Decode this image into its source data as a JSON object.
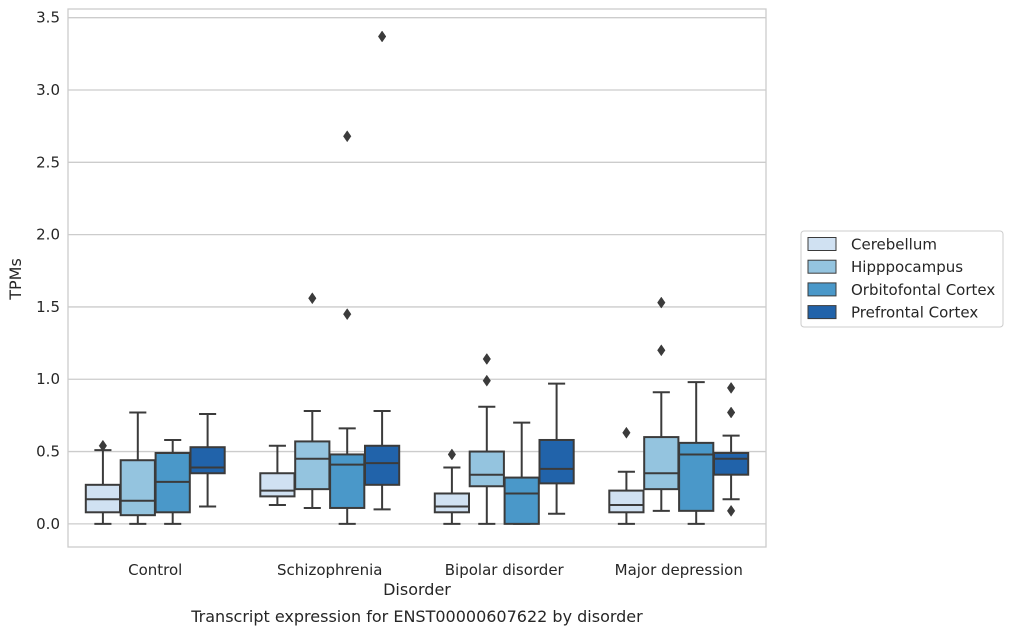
{
  "chart_data": {
    "type": "box",
    "title": "",
    "caption": "Transcript expression for ENST00000607622 by disorder",
    "xlabel": "Disorder",
    "ylabel": "TPMs",
    "ylim": [
      -0.16,
      3.56
    ],
    "yticks": [
      0.0,
      0.5,
      1.0,
      1.5,
      2.0,
      2.5,
      3.0,
      3.5
    ],
    "ytick_labels": [
      "0.0",
      "0.5",
      "1.0",
      "1.5",
      "2.0",
      "2.5",
      "3.0",
      "3.5"
    ],
    "categories": [
      "Control",
      "Schizophrenia",
      "Bipolar disorder",
      "Major depression"
    ],
    "grid": true,
    "legend_position": "right",
    "series": [
      {
        "name": "Cerebellum",
        "color": "#d0e1f2",
        "boxes": [
          {
            "whislo": 0.0,
            "q1": 0.08,
            "med": 0.17,
            "q3": 0.27,
            "whishi": 0.51,
            "fliers": [
              0.54
            ]
          },
          {
            "whislo": 0.13,
            "q1": 0.19,
            "med": 0.23,
            "q3": 0.35,
            "whishi": 0.54,
            "fliers": []
          },
          {
            "whislo": 0.0,
            "q1": 0.08,
            "med": 0.12,
            "q3": 0.21,
            "whishi": 0.39,
            "fliers": [
              0.48
            ]
          },
          {
            "whislo": 0.0,
            "q1": 0.08,
            "med": 0.13,
            "q3": 0.23,
            "whishi": 0.36,
            "fliers": [
              0.63
            ]
          }
        ]
      },
      {
        "name": "Hipppocampus",
        "color": "#94c4df",
        "boxes": [
          {
            "whislo": 0.0,
            "q1": 0.06,
            "med": 0.16,
            "q3": 0.44,
            "whishi": 0.77,
            "fliers": []
          },
          {
            "whislo": 0.11,
            "q1": 0.24,
            "med": 0.45,
            "q3": 0.57,
            "whishi": 0.78,
            "fliers": [
              1.56
            ]
          },
          {
            "whislo": 0.0,
            "q1": 0.26,
            "med": 0.34,
            "q3": 0.5,
            "whishi": 0.81,
            "fliers": [
              0.99,
              1.14
            ]
          },
          {
            "whislo": 0.09,
            "q1": 0.24,
            "med": 0.35,
            "q3": 0.6,
            "whishi": 0.91,
            "fliers": [
              1.2,
              1.53
            ]
          }
        ]
      },
      {
        "name": "Orbitofontal Cortex",
        "color": "#4a98c9",
        "boxes": [
          {
            "whislo": 0.0,
            "q1": 0.08,
            "med": 0.29,
            "q3": 0.49,
            "whishi": 0.58,
            "fliers": []
          },
          {
            "whislo": 0.0,
            "q1": 0.11,
            "med": 0.41,
            "q3": 0.48,
            "whishi": 0.66,
            "fliers": [
              1.45,
              2.68
            ]
          },
          {
            "whislo": 0.0,
            "q1": 0.0,
            "med": 0.21,
            "q3": 0.32,
            "whishi": 0.7,
            "fliers": []
          },
          {
            "whislo": 0.0,
            "q1": 0.09,
            "med": 0.48,
            "q3": 0.56,
            "whishi": 0.98,
            "fliers": []
          }
        ]
      },
      {
        "name": "Prefrontal Cortex",
        "color": "#2163aa",
        "boxes": [
          {
            "whislo": 0.12,
            "q1": 0.35,
            "med": 0.39,
            "q3": 0.53,
            "whishi": 0.76,
            "fliers": []
          },
          {
            "whislo": 0.1,
            "q1": 0.27,
            "med": 0.42,
            "q3": 0.54,
            "whishi": 0.78,
            "fliers": [
              3.37
            ]
          },
          {
            "whislo": 0.07,
            "q1": 0.28,
            "med": 0.38,
            "q3": 0.58,
            "whishi": 0.97,
            "fliers": []
          },
          {
            "whislo": 0.17,
            "q1": 0.34,
            "med": 0.45,
            "q3": 0.49,
            "whishi": 0.61,
            "fliers": [
              0.09,
              0.77,
              0.94
            ]
          }
        ]
      }
    ]
  }
}
